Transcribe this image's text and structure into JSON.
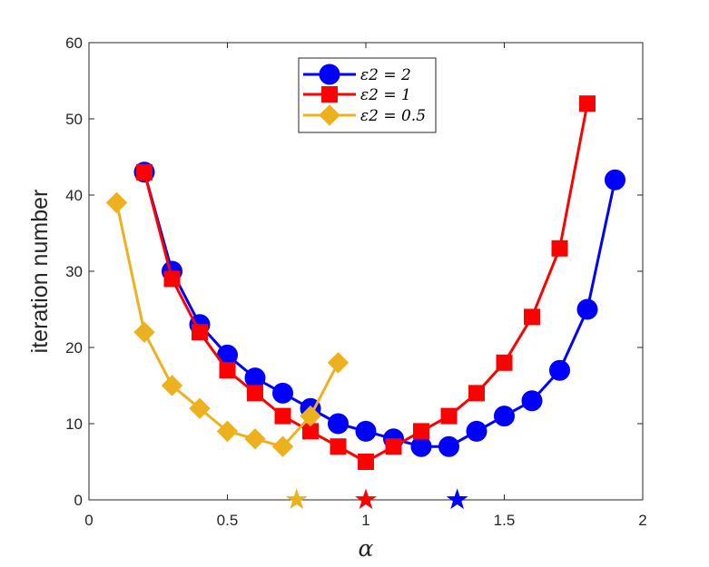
{
  "chart_data": {
    "type": "line",
    "xlabel": "α",
    "ylabel": "iteration number",
    "xlim": [
      0,
      2
    ],
    "ylim": [
      0,
      60
    ],
    "xticks": [
      "0",
      "0.5",
      "1",
      "1.5",
      "2"
    ],
    "yticks": [
      "0",
      "10",
      "20",
      "30",
      "40",
      "50",
      "60"
    ],
    "grid": false,
    "legend_position": "top-center",
    "series": [
      {
        "name": "ε2 = 2",
        "color": "#0000ff",
        "marker": "circle",
        "x": [
          0.2,
          0.3,
          0.4,
          0.5,
          0.6,
          0.7,
          0.8,
          0.9,
          1.0,
          1.1,
          1.2,
          1.3,
          1.4,
          1.5,
          1.6,
          1.7,
          1.8,
          1.9
        ],
        "y": [
          43,
          30,
          23,
          19,
          16,
          14,
          12,
          10,
          9,
          8,
          7,
          7,
          9,
          11,
          13,
          17,
          25,
          42
        ]
      },
      {
        "name": "ε2 = 1",
        "color": "#ff0000",
        "marker": "square",
        "x": [
          0.2,
          0.3,
          0.4,
          0.5,
          0.6,
          0.7,
          0.8,
          0.9,
          1.0,
          1.1,
          1.2,
          1.3,
          1.4,
          1.5,
          1.6,
          1.7,
          1.8
        ],
        "y": [
          43,
          29,
          22,
          17,
          14,
          11,
          9,
          7,
          5,
          7,
          9,
          11,
          14,
          18,
          24,
          33,
          52
        ]
      },
      {
        "name": "ε2 = 0.5",
        "color": "#edb120",
        "marker": "diamond",
        "x": [
          0.1,
          0.2,
          0.3,
          0.4,
          0.5,
          0.6,
          0.7,
          0.8,
          0.9
        ],
        "y": [
          39,
          22,
          15,
          12,
          9,
          8,
          7,
          11,
          18
        ]
      }
    ],
    "optimal_markers": [
      {
        "x": 0.75,
        "y": 0,
        "color": "#edb120",
        "marker": "star"
      },
      {
        "x": 1.0,
        "y": 0,
        "color": "#ff0000",
        "marker": "star"
      },
      {
        "x": 1.33,
        "y": 0,
        "color": "#0000ff",
        "marker": "star"
      }
    ]
  }
}
